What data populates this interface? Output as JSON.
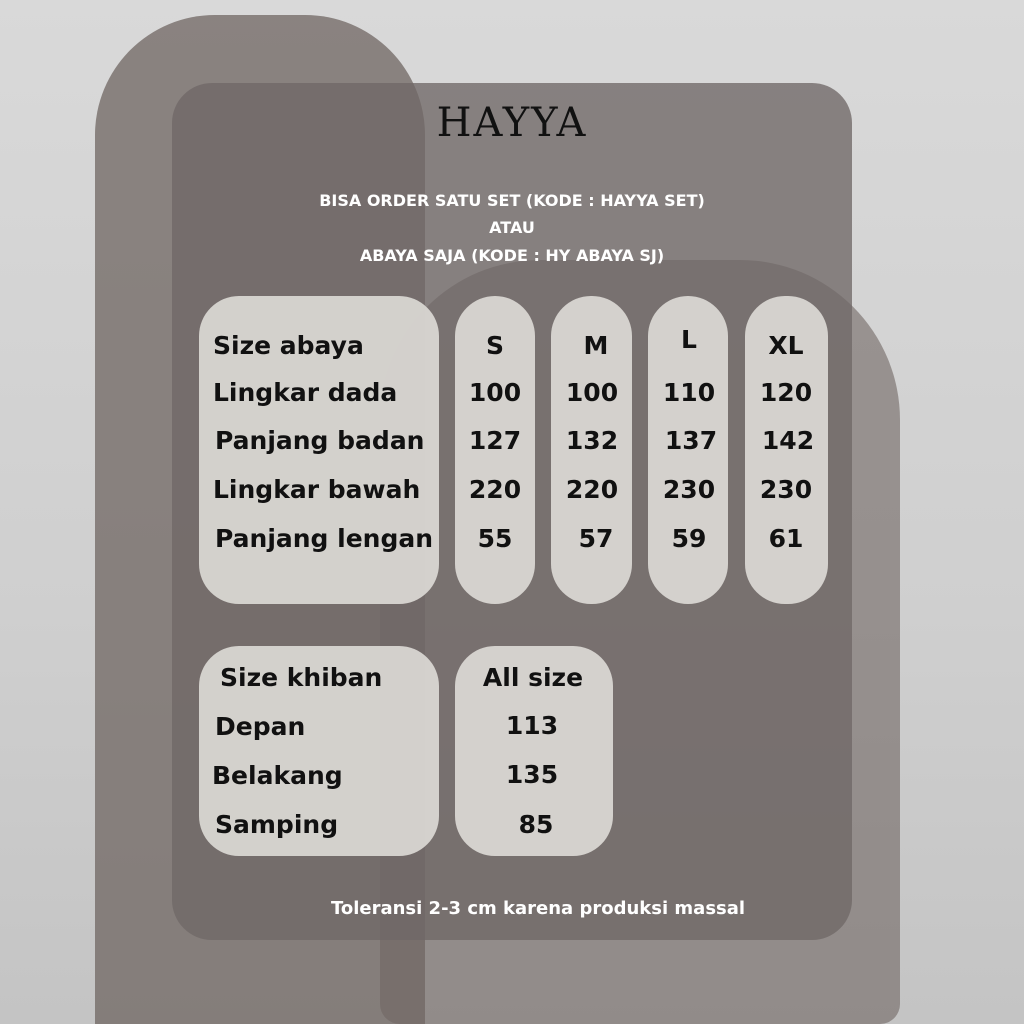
{
  "brand": "HAYYA",
  "order_lines": [
    "BISA ORDER SATU SET (KODE : HAYYA SET)",
    "ATAU",
    "ABAYA SAJA (KODE : HY ABAYA SJ)"
  ],
  "abaya": {
    "header": "Size abaya",
    "sizes": [
      "S",
      "M",
      "L",
      "XL"
    ],
    "rows": [
      {
        "label": "Lingkar dada",
        "values": [
          "100",
          "100",
          "110",
          "120"
        ]
      },
      {
        "label": "Panjang badan",
        "values": [
          "127",
          "132",
          "137",
          "142"
        ]
      },
      {
        "label": "Lingkar bawah",
        "values": [
          "220",
          "220",
          "230",
          "230"
        ]
      },
      {
        "label": "Panjang lengan",
        "values": [
          "55",
          "57",
          "59",
          "61"
        ]
      }
    ]
  },
  "khiban": {
    "header": "Size khiban",
    "size": "All size",
    "rows": [
      {
        "label": "Depan",
        "value": "113"
      },
      {
        "label": "Belakang",
        "value": "135"
      },
      {
        "label": "Samping",
        "value": "85"
      }
    ]
  },
  "footer": "Toleransi 2-3 cm karena produksi massal",
  "colors": {
    "panel": "#706866",
    "pill": "#dedbd7",
    "text": "#111111",
    "footer": "#ffffff"
  }
}
